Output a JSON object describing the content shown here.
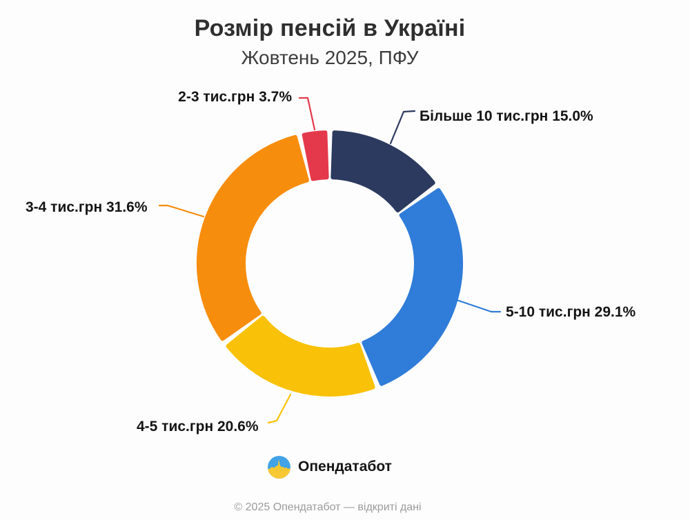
{
  "chart_data": {
    "type": "pie",
    "donut": true,
    "title": "Розмір пенсій в Україні",
    "subtitle": "Жовтень 2025, ПФУ",
    "unit": "%",
    "start_angle_deg": 0,
    "direction": "clockwise",
    "legend_position": "callout-labels",
    "slices": [
      {
        "category": "Більше 10 тис.грн",
        "value": 15.0,
        "label": "Більше 10 тис.грн 15.0%",
        "color": "#2c3a5f"
      },
      {
        "category": "5-10 тис.грн",
        "value": 29.1,
        "label": "5-10 тис.грн 29.1%",
        "color": "#2f7cd9"
      },
      {
        "category": "4-5 тис.грн",
        "value": 20.6,
        "label": "4-5 тис.грн 20.6%",
        "color": "#f9c208"
      },
      {
        "category": "3-4 тис.грн",
        "value": 31.6,
        "label": "3-4 тис.грн 31.6%",
        "color": "#f78d0d"
      },
      {
        "category": "2-3 тис.грн",
        "value": 3.7,
        "label": "2-3 тис.грн 3.7%",
        "color": "#e4394b"
      }
    ]
  },
  "footer": {
    "brand": "Опендатабот",
    "copyright": "© 2025 Опендатабот — відкриті дані"
  },
  "icons": {
    "brand_logo": "opendatabot-flag-circle-icon",
    "brand_logo_colors": {
      "sky": "#42a3e6",
      "field": "#f8c832"
    }
  }
}
